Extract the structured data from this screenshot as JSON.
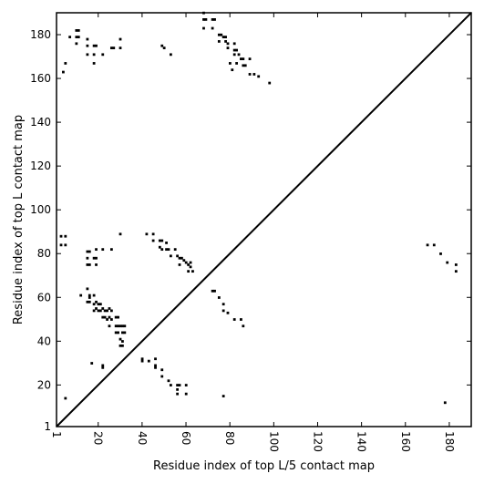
{
  "chart_data": {
    "type": "scatter",
    "title": "",
    "xlabel": "Residue index of top L/5 contact map",
    "ylabel": "Residue index of top L contact map",
    "xlim": [
      1,
      190
    ],
    "ylim": [
      1,
      190
    ],
    "x_ticks": [
      1,
      20,
      40,
      60,
      80,
      100,
      120,
      140,
      160,
      180
    ],
    "y_ticks": [
      1,
      20,
      40,
      60,
      80,
      100,
      120,
      140,
      160,
      180
    ],
    "x_tick_labels": [
      "1",
      "20",
      "40",
      "60",
      "80",
      "100",
      "120",
      "140",
      "160",
      "180"
    ],
    "y_tick_labels": [
      "1",
      "20",
      "40",
      "60",
      "80",
      "100",
      "120",
      "140",
      "160",
      "180"
    ],
    "x_tick_rotation": -90,
    "diagonal": [
      [
        1,
        1
      ],
      [
        190,
        190
      ]
    ],
    "marker": "square",
    "color": "#000000",
    "series": [
      {
        "values": [
          [
            68,
            190
          ],
          [
            68,
            187
          ],
          [
            69,
            187
          ],
          [
            72,
            187
          ],
          [
            73,
            187
          ],
          [
            68,
            183
          ],
          [
            72,
            183
          ],
          [
            75,
            180
          ],
          [
            76,
            180
          ],
          [
            77,
            179
          ],
          [
            78,
            179
          ],
          [
            75,
            177
          ],
          [
            78,
            177
          ],
          [
            79,
            176
          ],
          [
            82,
            176
          ],
          [
            79,
            174
          ],
          [
            82,
            173
          ],
          [
            83,
            173
          ],
          [
            82,
            171
          ],
          [
            84,
            171
          ],
          [
            85,
            169
          ],
          [
            86,
            169
          ],
          [
            89,
            169
          ],
          [
            80,
            167
          ],
          [
            83,
            167
          ],
          [
            86,
            166
          ],
          [
            87,
            166
          ],
          [
            81,
            164
          ],
          [
            89,
            162
          ],
          [
            91,
            162
          ],
          [
            93,
            161
          ],
          [
            98,
            158
          ],
          [
            10,
            182
          ],
          [
            11,
            182
          ],
          [
            10,
            179
          ],
          [
            11,
            179
          ],
          [
            7,
            179
          ],
          [
            15,
            178
          ],
          [
            30,
            178
          ],
          [
            10,
            176
          ],
          [
            15,
            175
          ],
          [
            18,
            175
          ],
          [
            19,
            175
          ],
          [
            26,
            174
          ],
          [
            27,
            174
          ],
          [
            30,
            174
          ],
          [
            49,
            175
          ],
          [
            50,
            174
          ],
          [
            15,
            171
          ],
          [
            18,
            171
          ],
          [
            22,
            171
          ],
          [
            53,
            171
          ],
          [
            5,
            167
          ],
          [
            18,
            167
          ],
          [
            4,
            163
          ],
          [
            3,
            88
          ],
          [
            5,
            88
          ],
          [
            3,
            84
          ],
          [
            5,
            84
          ],
          [
            15,
            81
          ],
          [
            16,
            81
          ],
          [
            19,
            82
          ],
          [
            22,
            82
          ],
          [
            26,
            82
          ],
          [
            42,
            89
          ],
          [
            45,
            89
          ],
          [
            45,
            86
          ],
          [
            48,
            86
          ],
          [
            49,
            86
          ],
          [
            51,
            85
          ],
          [
            48,
            83
          ],
          [
            49,
            82
          ],
          [
            51,
            82
          ],
          [
            52,
            82
          ],
          [
            55,
            82
          ],
          [
            53,
            79
          ],
          [
            56,
            79
          ],
          [
            57,
            78
          ],
          [
            58,
            78
          ],
          [
            59,
            77
          ],
          [
            60,
            76
          ],
          [
            62,
            76
          ],
          [
            57,
            75
          ],
          [
            61,
            75
          ],
          [
            62,
            74
          ],
          [
            61,
            72
          ],
          [
            63,
            72
          ],
          [
            15,
            78
          ],
          [
            18,
            78
          ],
          [
            19,
            78
          ],
          [
            15,
            75
          ],
          [
            16,
            75
          ],
          [
            19,
            75
          ],
          [
            170,
            84
          ],
          [
            173,
            84
          ],
          [
            176,
            80
          ],
          [
            179,
            76
          ],
          [
            183,
            75
          ],
          [
            183,
            72
          ],
          [
            30,
            89
          ],
          [
            72,
            63
          ],
          [
            73,
            63
          ],
          [
            75,
            60
          ],
          [
            77,
            57
          ],
          [
            77,
            54
          ],
          [
            79,
            53
          ],
          [
            82,
            50
          ],
          [
            85,
            50
          ],
          [
            86,
            47
          ],
          [
            12,
            61
          ],
          [
            16,
            61
          ],
          [
            18,
            61
          ],
          [
            15,
            64
          ],
          [
            16,
            60
          ],
          [
            15,
            58
          ],
          [
            16,
            58
          ],
          [
            18,
            57
          ],
          [
            19,
            58
          ],
          [
            20,
            57
          ],
          [
            21,
            57
          ],
          [
            19,
            55
          ],
          [
            20,
            54
          ],
          [
            21,
            54
          ],
          [
            22,
            55
          ],
          [
            23,
            54
          ],
          [
            24,
            54
          ],
          [
            25,
            55
          ],
          [
            26,
            54
          ],
          [
            18,
            54
          ],
          [
            22,
            51
          ],
          [
            23,
            51
          ],
          [
            24,
            50
          ],
          [
            25,
            51
          ],
          [
            26,
            50
          ],
          [
            28,
            51
          ],
          [
            29,
            51
          ],
          [
            25,
            47
          ],
          [
            28,
            47
          ],
          [
            29,
            47
          ],
          [
            30,
            47
          ],
          [
            31,
            47
          ],
          [
            32,
            47
          ],
          [
            28,
            44
          ],
          [
            29,
            44
          ],
          [
            31,
            44
          ],
          [
            32,
            44
          ],
          [
            30,
            41
          ],
          [
            31,
            40
          ],
          [
            31,
            38
          ],
          [
            30,
            38
          ],
          [
            40,
            31
          ],
          [
            43,
            31
          ],
          [
            40,
            32
          ],
          [
            46,
            32
          ],
          [
            46,
            29
          ],
          [
            46,
            28
          ],
          [
            49,
            27
          ],
          [
            49,
            24
          ],
          [
            52,
            22
          ],
          [
            53,
            20
          ],
          [
            56,
            20
          ],
          [
            57,
            20
          ],
          [
            56,
            18
          ],
          [
            60,
            20
          ],
          [
            56,
            16
          ],
          [
            60,
            16
          ],
          [
            17,
            30
          ],
          [
            22,
            29
          ],
          [
            22,
            28
          ],
          [
            5,
            14
          ],
          [
            77,
            15
          ],
          [
            178,
            12
          ]
        ]
      }
    ]
  }
}
